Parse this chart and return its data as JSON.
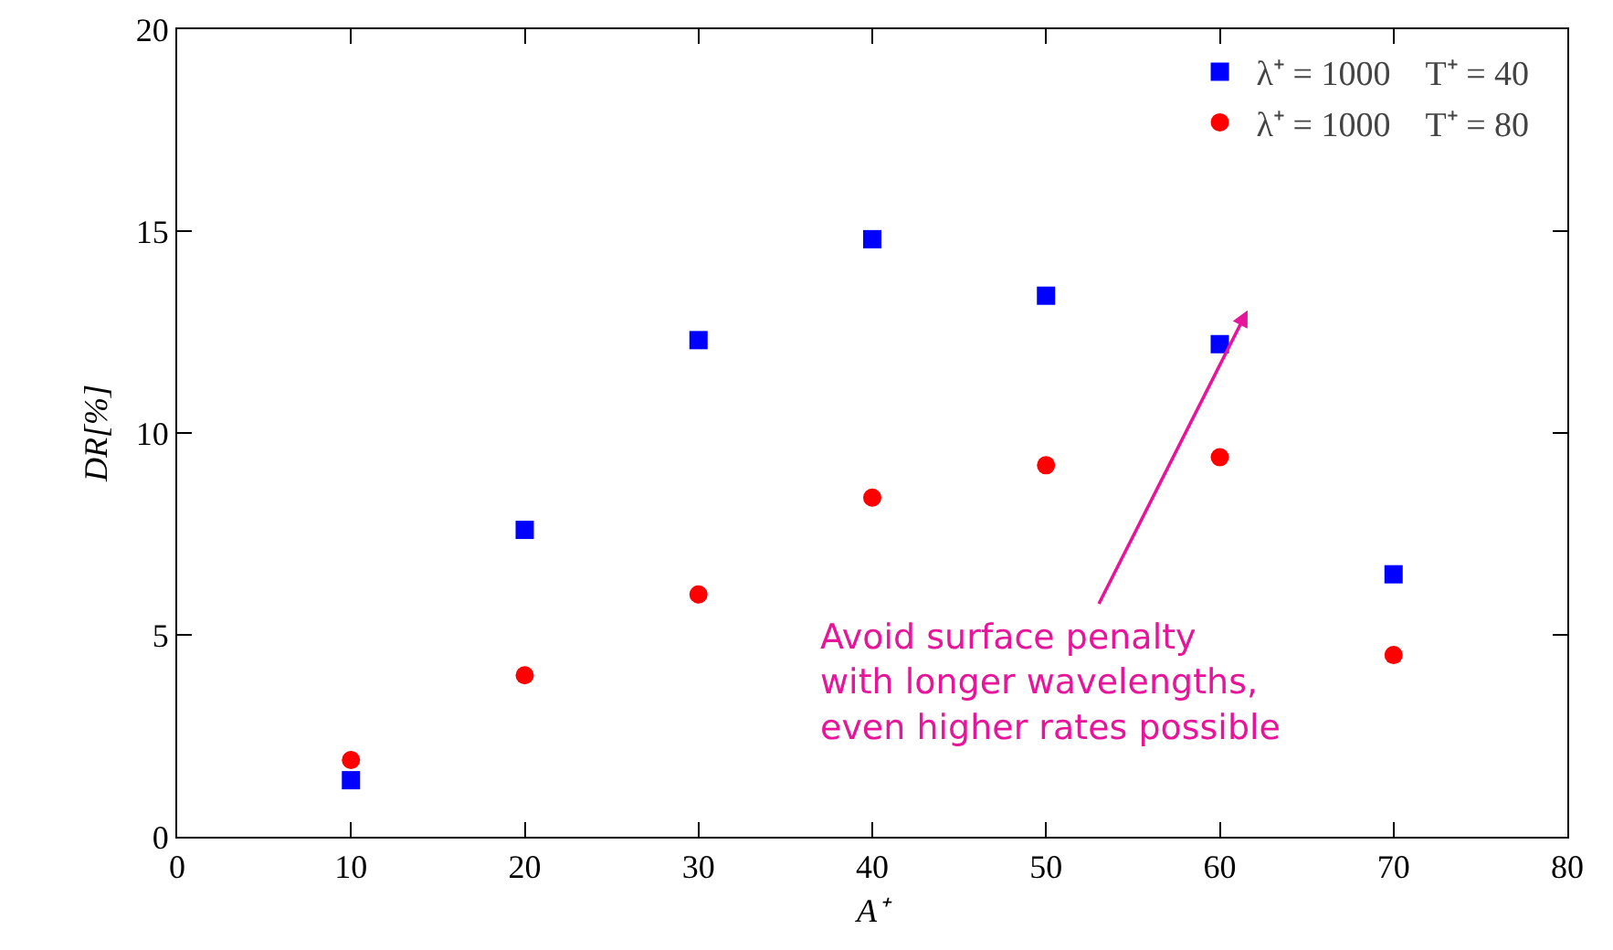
{
  "chart_data": {
    "type": "scatter",
    "xlabel": "A⁺",
    "ylabel": "DR[%]",
    "x": [
      10,
      20,
      30,
      40,
      50,
      60,
      70
    ],
    "series": [
      {
        "name": "λ⁺ = 1000    T⁺ = 40",
        "color": "#0000ff",
        "marker": "square",
        "values": [
          1.4,
          7.6,
          12.3,
          14.8,
          13.4,
          12.2,
          6.5
        ]
      },
      {
        "name": "λ⁺ = 1000    T⁺ = 80",
        "color": "#ff0000",
        "marker": "circle",
        "values": [
          1.9,
          4.0,
          6.0,
          8.4,
          9.2,
          9.4,
          4.5
        ]
      }
    ],
    "xlim": [
      0,
      80
    ],
    "xticks": [
      0,
      10,
      20,
      30,
      40,
      50,
      60,
      70,
      80
    ],
    "ylim": [
      0,
      20
    ],
    "yticks": [
      0,
      5,
      10,
      15,
      20
    ],
    "grid": false,
    "legend": "top right",
    "annotations": [
      "Avoid surface penalty\nwith longer wavelengths,\neven higher rates possible"
    ]
  }
}
